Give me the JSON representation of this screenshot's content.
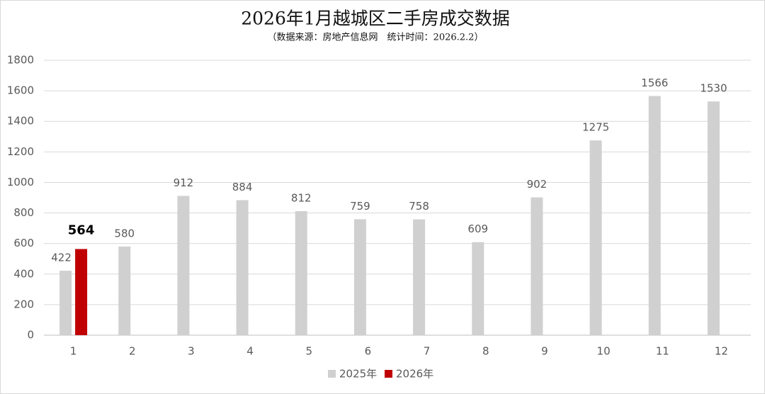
{
  "chart_data": {
    "type": "bar",
    "title": "2026年1月越城区二手房成交数据",
    "subtitle": "（数据来源：房地产信息网　统计时间：2026.2.2）",
    "categories": [
      "1",
      "2",
      "3",
      "4",
      "5",
      "6",
      "7",
      "8",
      "9",
      "10",
      "11",
      "12"
    ],
    "series": [
      {
        "name": "2025年",
        "color": "#d0d0d0",
        "values": [
          422,
          580,
          912,
          884,
          812,
          759,
          758,
          609,
          902,
          1275,
          1566,
          1530
        ]
      },
      {
        "name": "2026年",
        "color": "#c00000",
        "values": [
          564,
          null,
          null,
          null,
          null,
          null,
          null,
          null,
          null,
          null,
          null,
          null
        ]
      }
    ],
    "ylim": [
      0,
      1800
    ],
    "yticks": [
      0,
      200,
      400,
      600,
      800,
      1000,
      1200,
      1400,
      1600,
      1800
    ],
    "grid": true,
    "legend": "bottom"
  }
}
